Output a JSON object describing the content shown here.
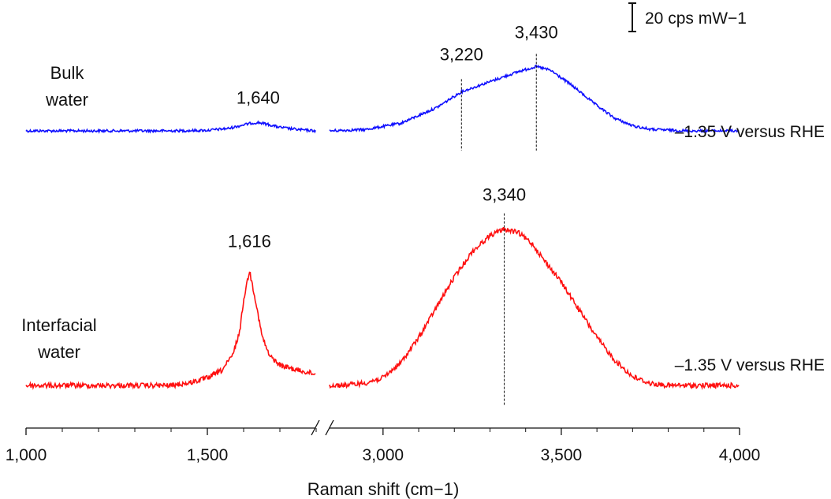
{
  "chart_data": {
    "type": "line",
    "xlabel": "Raman shift (cm−1)",
    "x_break": [
      1800,
      2850
    ],
    "x_ticks": [
      1000,
      1500,
      3000,
      3500,
      4000
    ],
    "x_tick_labels": [
      "1,000",
      "1,500",
      "3,000",
      "3,500",
      "4,000"
    ],
    "scale_bar": {
      "value": 20,
      "label": "20 cps mW−1"
    },
    "series": [
      {
        "name": "Bulk water",
        "condition": "–1.35 V versus RHE",
        "color": "#1010ff",
        "x": [
          1000,
          1100,
          1200,
          1300,
          1400,
          1500,
          1560,
          1600,
          1620,
          1640,
          1660,
          1700,
          1750,
          1800,
          2850,
          2950,
          3050,
          3150,
          3220,
          3300,
          3380,
          3430,
          3470,
          3530,
          3600,
          3650,
          3700,
          3750,
          3850,
          4000
        ],
        "y": [
          0,
          0,
          0,
          0,
          0,
          0.2,
          1.0,
          2.4,
          3.0,
          3.3,
          2.8,
          1.4,
          0.5,
          0,
          0,
          0.5,
          3.0,
          9.2,
          15.5,
          19.5,
          23.5,
          25.5,
          24.0,
          18.0,
          10.0,
          5.0,
          2.0,
          0.6,
          0,
          0
        ]
      },
      {
        "name": "Interfacial water",
        "condition": "–1.35 V versus RHE",
        "color": "#ff1010",
        "x": [
          1000,
          1100,
          1200,
          1300,
          1400,
          1450,
          1500,
          1540,
          1570,
          1590,
          1600,
          1616,
          1630,
          1650,
          1670,
          1700,
          1750,
          1800,
          2850,
          2900,
          2950,
          3000,
          3050,
          3100,
          3150,
          3200,
          3250,
          3300,
          3340,
          3380,
          3420,
          3450,
          3500,
          3550,
          3600,
          3650,
          3700,
          3750,
          3800,
          3900,
          4000
        ],
        "y": [
          0,
          0,
          0,
          0,
          0,
          1.0,
          3.0,
          6.0,
          12.0,
          22.0,
          34.0,
          45.5,
          36.0,
          20.0,
          12.0,
          8.0,
          6.0,
          4.5,
          0,
          0.2,
          1.0,
          3.0,
          9.0,
          19.0,
          31.0,
          43.0,
          53.0,
          59.5,
          62.0,
          60.5,
          56.0,
          50.0,
          41.0,
          30.0,
          19.0,
          10.0,
          3.5,
          0.8,
          0,
          0,
          0
        ]
      }
    ],
    "labels": [
      {
        "series": 0,
        "x": 1640,
        "text": "1,640"
      },
      {
        "series": 0,
        "x": 3220,
        "text": "3,220"
      },
      {
        "series": 0,
        "x": 3430,
        "text": "3,430"
      },
      {
        "series": 1,
        "x": 1616,
        "text": "1,616"
      },
      {
        "series": 1,
        "x": 3340,
        "text": "3,340"
      }
    ],
    "peak_markers": [
      {
        "series": 0,
        "x": 3220
      },
      {
        "series": 0,
        "x": 3430
      },
      {
        "series": 1,
        "x": 3340
      }
    ]
  }
}
